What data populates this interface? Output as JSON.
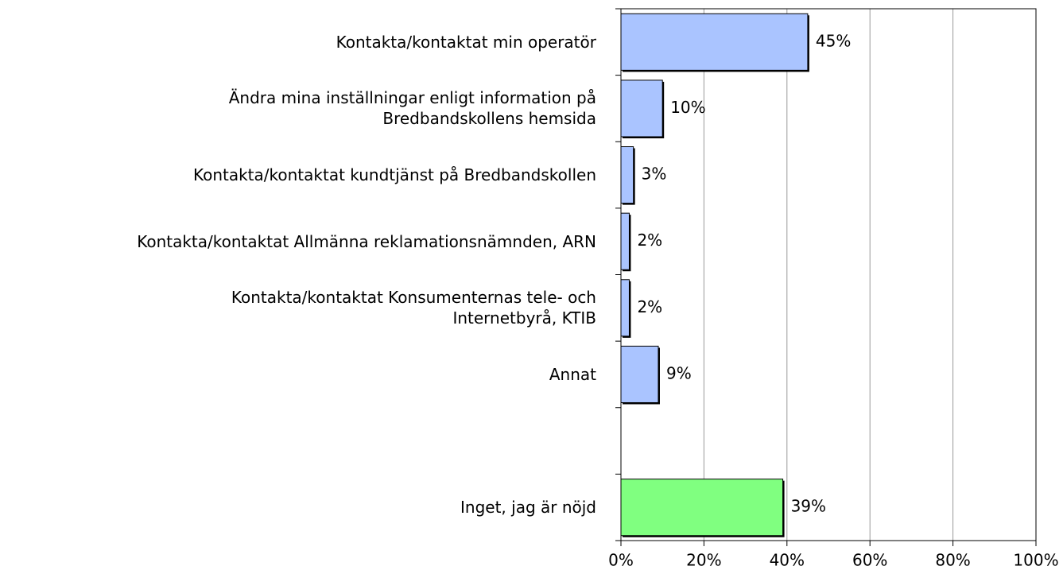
{
  "chart_data": {
    "type": "bar",
    "orientation": "horizontal",
    "categories": [
      "Kontakta/kontaktat min operatör",
      "Ändra mina inställningar enligt information på\nBredbandskollens hemsida",
      "Kontakta/kontaktat kundtjänst på Bredbandskollen",
      "Kontakta/kontaktat Allmänna reklamationsnämnden, ARN",
      "Kontakta/kontaktat Konsumenternas tele- och\nInternetbyrå, KTIB",
      "Annat",
      null,
      "Inget, jag är nöjd"
    ],
    "values": [
      45,
      10,
      3,
      2,
      2,
      9,
      null,
      39
    ],
    "value_labels": [
      "45%",
      "10%",
      "3%",
      "2%",
      "2%",
      "9%",
      null,
      "39%"
    ],
    "colors": [
      "#aac4ff",
      "#aac4ff",
      "#aac4ff",
      "#aac4ff",
      "#aac4ff",
      "#aac4ff",
      null,
      "#80ff80"
    ],
    "xlim": [
      0,
      100
    ],
    "xticks": [
      {
        "value": 0,
        "label": "0%"
      },
      {
        "value": 20,
        "label": "20%"
      },
      {
        "value": 40,
        "label": "40%"
      },
      {
        "value": 60,
        "label": "60%"
      },
      {
        "value": 80,
        "label": "80%"
      },
      {
        "value": 100,
        "label": "100%"
      }
    ],
    "grid": true
  }
}
